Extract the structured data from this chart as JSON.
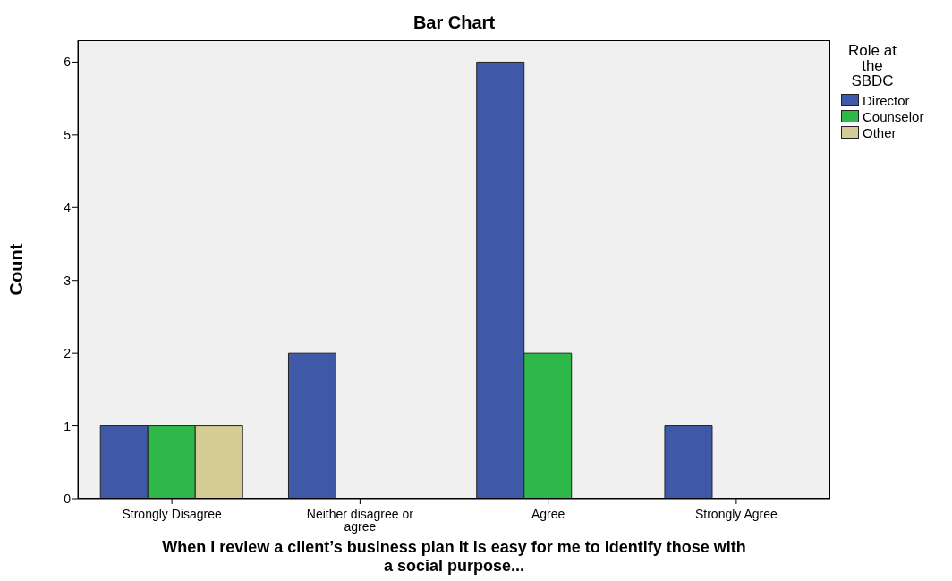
{
  "chart_data": {
    "type": "bar",
    "title": "Bar Chart",
    "xlabel": "When I review a client’s business plan it is easy for me to identify those with a social purpose...",
    "ylabel": "Count",
    "legend_title": "Role at the SBDC",
    "categories": [
      "Strongly Disagree",
      "Neither disagree or agree",
      "Agree",
      "Strongly Agree"
    ],
    "series": [
      {
        "name": "Director",
        "color": "#3f58a8",
        "values": [
          1,
          2,
          6,
          1
        ]
      },
      {
        "name": "Counselor",
        "color": "#2fb84a",
        "values": [
          1,
          0,
          2,
          0
        ]
      },
      {
        "name": "Other",
        "color": "#d4cc94",
        "values": [
          1,
          0,
          0,
          0
        ]
      }
    ],
    "ylim": [
      0,
      6.3
    ],
    "yticks": [
      0,
      1,
      2,
      3,
      4,
      5,
      6
    ],
    "grid": false,
    "legend": "right"
  }
}
